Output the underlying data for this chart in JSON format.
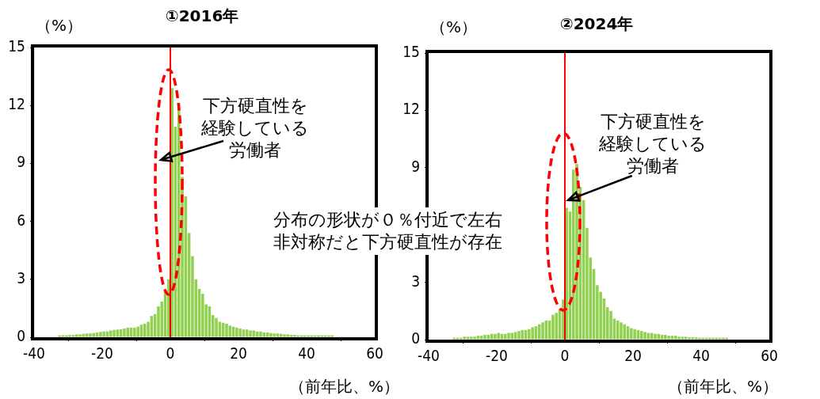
{
  "chart_data": [
    {
      "type": "histogram",
      "title": "①2016年",
      "ylabel": "（%）",
      "xlabel": "（前年比、%）",
      "bins": [
        -33,
        -32,
        -31,
        -30,
        -29,
        -28,
        -27,
        -26,
        -25,
        -24,
        -23,
        -22,
        -21,
        -20,
        -19,
        -18,
        -17,
        -16,
        -15,
        -14,
        -13,
        -12,
        -11,
        -10,
        -9,
        -8,
        -7,
        -6,
        -5,
        -4,
        -3,
        -2,
        -1,
        0,
        1,
        2,
        3,
        4,
        5,
        6,
        7,
        8,
        9,
        10,
        11,
        12,
        13,
        14,
        15,
        16,
        17,
        18,
        19,
        20,
        21,
        22,
        23,
        24,
        25,
        26,
        27,
        28,
        29,
        30,
        31,
        32,
        33,
        34,
        35,
        36,
        37,
        38,
        39,
        40,
        41,
        42,
        43,
        44,
        45,
        46,
        47,
        48
      ],
      "values": [
        0.1,
        0.1,
        0.1,
        0.12,
        0.12,
        0.15,
        0.15,
        0.18,
        0.2,
        0.2,
        0.22,
        0.25,
        0.28,
        0.3,
        0.3,
        0.35,
        0.38,
        0.4,
        0.42,
        0.45,
        0.5,
        0.5,
        0.5,
        0.55,
        0.65,
        0.7,
        0.8,
        1.1,
        1.2,
        1.6,
        1.85,
        2.4,
        3.0,
        12.9,
        10.9,
        12.1,
        8.3,
        7.3,
        5.4,
        4.2,
        3.0,
        2.5,
        2.25,
        1.7,
        1.6,
        1.15,
        1.0,
        0.8,
        0.75,
        0.7,
        0.6,
        0.55,
        0.5,
        0.45,
        0.4,
        0.4,
        0.35,
        0.35,
        0.3,
        0.3,
        0.25,
        0.25,
        0.22,
        0.2,
        0.2,
        0.18,
        0.15,
        0.15,
        0.12,
        0.12,
        0.1,
        0.1,
        0.1,
        0.1,
        0.1,
        0.1,
        0.1,
        0.1,
        0.1,
        0.1,
        0.1
      ],
      "color": "#92d050",
      "xlim": [
        -40,
        60
      ],
      "xticks": [
        -40,
        -20,
        0,
        20,
        40,
        60
      ],
      "ylim": [
        0,
        15
      ],
      "yticks": [
        0,
        3,
        6,
        9,
        12,
        15
      ],
      "ref_lines": [
        {
          "axis": "x",
          "value": 0,
          "color": "#ff0000"
        }
      ],
      "annotations": [
        "下方硬直性を経験している労働者",
        "分布の形状が０％付近で左右非対称だと下方硬直性が存在"
      ],
      "grid": false,
      "legend": false
    },
    {
      "type": "histogram",
      "title": "②2024年",
      "ylabel": "（%）",
      "xlabel": "（前年比、%）",
      "bins": [
        -33,
        -32,
        -31,
        -30,
        -29,
        -28,
        -27,
        -26,
        -25,
        -24,
        -23,
        -22,
        -21,
        -20,
        -19,
        -18,
        -17,
        -16,
        -15,
        -14,
        -13,
        -12,
        -11,
        -10,
        -9,
        -8,
        -7,
        -6,
        -5,
        -4,
        -3,
        -2,
        -1,
        0,
        1,
        2,
        3,
        4,
        5,
        6,
        7,
        8,
        9,
        10,
        11,
        12,
        13,
        14,
        15,
        16,
        17,
        18,
        19,
        20,
        21,
        22,
        23,
        24,
        25,
        26,
        27,
        28,
        29,
        30,
        31,
        32,
        33,
        34,
        35,
        36,
        37,
        38,
        39,
        40,
        41,
        42,
        43,
        44,
        45,
        46,
        47,
        48
      ],
      "values": [
        0.1,
        0.1,
        0.1,
        0.15,
        0.15,
        0.15,
        0.15,
        0.2,
        0.2,
        0.25,
        0.25,
        0.3,
        0.3,
        0.35,
        0.3,
        0.3,
        0.35,
        0.35,
        0.4,
        0.45,
        0.5,
        0.5,
        0.55,
        0.65,
        0.7,
        0.8,
        0.9,
        1.0,
        1.0,
        1.3,
        1.4,
        1.6,
        2.1,
        6.9,
        6.7,
        8.9,
        9.2,
        8.0,
        7.3,
        5.85,
        4.3,
        3.7,
        2.85,
        2.5,
        2.15,
        1.7,
        1.5,
        1.1,
        1.0,
        0.9,
        0.8,
        0.7,
        0.6,
        0.55,
        0.5,
        0.45,
        0.4,
        0.35,
        0.35,
        0.3,
        0.3,
        0.25,
        0.25,
        0.2,
        0.2,
        0.2,
        0.15,
        0.15,
        0.15,
        0.12,
        0.12,
        0.12,
        0.1,
        0.1,
        0.1,
        0.1,
        0.1,
        0.1,
        0.1,
        0.1,
        0.1
      ],
      "color": "#92d050",
      "xlim": [
        -40,
        60
      ],
      "xticks": [
        -40,
        -20,
        0,
        20,
        40,
        60
      ],
      "ylim": [
        0,
        15
      ],
      "yticks": [
        0,
        3,
        {
          "value": 6,
          "label": null
        },
        9,
        12,
        15
      ],
      "ref_lines": [
        {
          "axis": "x",
          "value": 0,
          "color": "#ff0000"
        }
      ],
      "annotations": [
        {
          "text": "下方硬直性を経験している労働者",
          "x": 1,
          "y": 7.3
        }
      ],
      "grid": false,
      "legend": false
    }
  ]
}
